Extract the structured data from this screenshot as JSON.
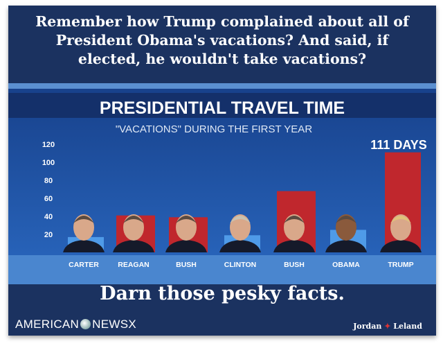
{
  "headline": [
    "Remember how Trump complained about all of",
    "President Obama's vacations? And said, if",
    "elected, he wouldn't take vacations?"
  ],
  "caption": "Darn those pesky facts.",
  "logos": {
    "left_a": "AMERICAN",
    "left_b": "NEWSX",
    "right_a": "Jordan",
    "right_b": "Leland"
  },
  "colors": {
    "frame": "#1b3260",
    "bar_red": "#c0272d",
    "bar_blue": "#4f9be8",
    "chart_bg": "#1f55a8"
  },
  "chart_data": {
    "type": "bar",
    "title": "PRESIDENTIAL TRAVEL TIME",
    "subtitle": "\"VACATIONS\" DURING THE FIRST YEAR",
    "annotation": "111 DAYS",
    "categories": [
      "CARTER",
      "REAGAN",
      "BUSH",
      "CLINTON",
      "BUSH",
      "OBAMA",
      "TRUMP"
    ],
    "values": [
      17,
      41,
      39,
      19,
      68,
      25,
      111
    ],
    "party": [
      "D",
      "R",
      "R",
      "D",
      "R",
      "D",
      "R"
    ],
    "yticks": [
      20,
      40,
      60,
      80,
      100,
      120
    ],
    "ylim": [
      0,
      120
    ],
    "xlabel": "",
    "ylabel": "",
    "grid": false,
    "legend": "none"
  }
}
